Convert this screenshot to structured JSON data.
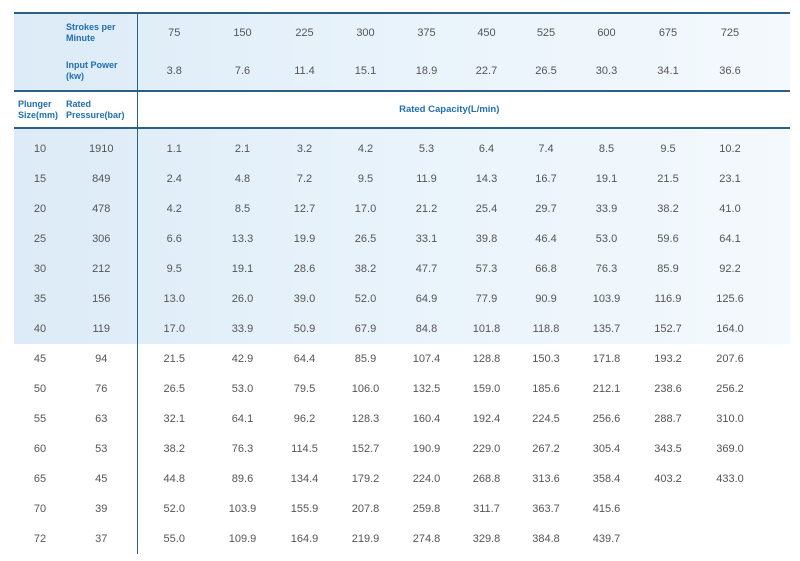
{
  "header": {
    "strokes_label": "Strokes per Minute",
    "power_label": "Input Power (kw)",
    "plunger_label": "Plunger Size(mm)",
    "pressure_label": "Rated Pressure(bar)",
    "capacity_label": "Rated Capacity(L/min)",
    "strokes": [
      "75",
      "150",
      "225",
      "300",
      "375",
      "450",
      "525",
      "600",
      "675",
      "725"
    ],
    "power": [
      "3.8",
      "7.6",
      "11.4",
      "15.1",
      "18.9",
      "22.7",
      "26.5",
      "30.3",
      "34.1",
      "36.6"
    ]
  },
  "rows": [
    {
      "size": "10",
      "pressure": "1910",
      "values": [
        "1.1",
        "2.1",
        "3.2",
        "4.2",
        "5.3",
        "6.4",
        "7.4",
        "8.5",
        "9.5",
        "10.2"
      ]
    },
    {
      "size": "15",
      "pressure": "849",
      "values": [
        "2.4",
        "4.8",
        "7.2",
        "9.5",
        "11.9",
        "14.3",
        "16.7",
        "19.1",
        "21.5",
        "23.1"
      ]
    },
    {
      "size": "20",
      "pressure": "478",
      "values": [
        "4.2",
        "8.5",
        "12.7",
        "17.0",
        "21.2",
        "25.4",
        "29.7",
        "33.9",
        "38.2",
        "41.0"
      ]
    },
    {
      "size": "25",
      "pressure": "306",
      "values": [
        "6.6",
        "13.3",
        "19.9",
        "26.5",
        "33.1",
        "39.8",
        "46.4",
        "53.0",
        "59.6",
        "64.1"
      ]
    },
    {
      "size": "30",
      "pressure": "212",
      "values": [
        "9.5",
        "19.1",
        "28.6",
        "38.2",
        "47.7",
        "57.3",
        "66.8",
        "76.3",
        "85.9",
        "92.2"
      ]
    },
    {
      "size": "35",
      "pressure": "156",
      "values": [
        "13.0",
        "26.0",
        "39.0",
        "52.0",
        "64.9",
        "77.9",
        "90.9",
        "103.9",
        "116.9",
        "125.6"
      ]
    },
    {
      "size": "40",
      "pressure": "119",
      "values": [
        "17.0",
        "33.9",
        "50.9",
        "67.9",
        "84.8",
        "101.8",
        "118.8",
        "135.7",
        "152.7",
        "164.0"
      ]
    },
    {
      "size": "45",
      "pressure": "94",
      "values": [
        "21.5",
        "42.9",
        "64.4",
        "85.9",
        "107.4",
        "128.8",
        "150.3",
        "171.8",
        "193.2",
        "207.6"
      ]
    },
    {
      "size": "50",
      "pressure": "76",
      "values": [
        "26.5",
        "53.0",
        "79.5",
        "106.0",
        "132.5",
        "159.0",
        "185.6",
        "212.1",
        "238.6",
        "256.2"
      ]
    },
    {
      "size": "55",
      "pressure": "63",
      "values": [
        "32.1",
        "64.1",
        "96.2",
        "128.3",
        "160.4",
        "192.4",
        "224.5",
        "256.6",
        "288.7",
        "310.0"
      ]
    },
    {
      "size": "60",
      "pressure": "53",
      "values": [
        "38.2",
        "76.3",
        "114.5",
        "152.7",
        "190.9",
        "229.0",
        "267.2",
        "305.4",
        "343.5",
        "369.0"
      ]
    },
    {
      "size": "65",
      "pressure": "45",
      "values": [
        "44.8",
        "89.6",
        "134.4",
        "179.2",
        "224.0",
        "268.8",
        "313.6",
        "358.4",
        "403.2",
        "433.0"
      ]
    },
    {
      "size": "70",
      "pressure": "39",
      "values": [
        "52.0",
        "103.9",
        "155.9",
        "207.8",
        "259.8",
        "311.7",
        "363.7",
        "415.6",
        "",
        ""
      ]
    },
    {
      "size": "72",
      "pressure": "37",
      "values": [
        "55.0",
        "109.9",
        "164.9",
        "219.9",
        "274.8",
        "329.8",
        "384.8",
        "439.7",
        "",
        ""
      ]
    }
  ]
}
